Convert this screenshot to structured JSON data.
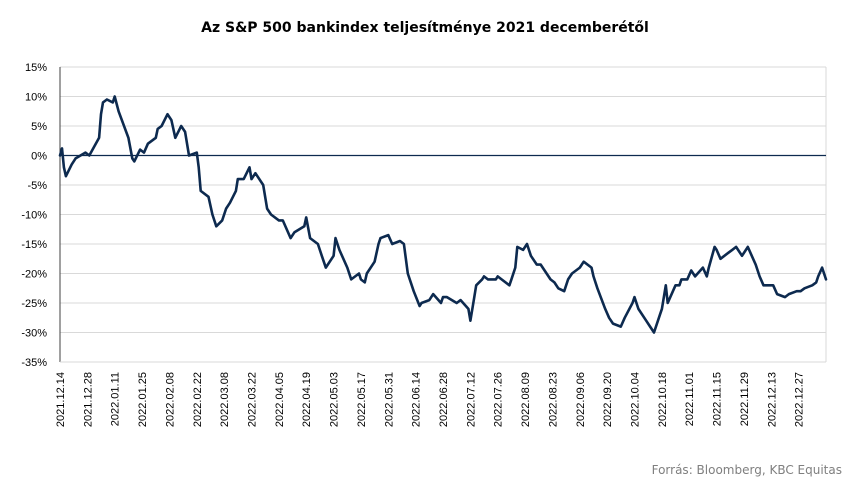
{
  "chart_data": {
    "type": "line",
    "title": "Az S&P 500 bankindex teljesítménye 2021 decemberétől",
    "source": "Forrás: Bloomberg, KBC Equitas",
    "xlabel": "",
    "ylabel": "",
    "ylim": [
      -35,
      15
    ],
    "y_ticks": [
      "15%",
      "10%",
      "5%",
      "0%",
      "-5%",
      "-10%",
      "-15%",
      "-20%",
      "-25%",
      "-30%",
      "-35%"
    ],
    "x_ticks": [
      "2021.12.14",
      "2021.12.28",
      "2022.01.11",
      "2022.01.25",
      "2022.02.08",
      "2022.02.22",
      "2022.03.08",
      "2022.03.22",
      "2022.04.05",
      "2022.04.19",
      "2022.05.03",
      "2022.05.17",
      "2022.05.31",
      "2022.06.14",
      "2022.06.28",
      "2022.07.12",
      "2022.07.26",
      "2022.08.09",
      "2022.08.23",
      "2022.09.06",
      "2022.09.20",
      "2022.10.04",
      "2022.10.18",
      "2022.11.01",
      "2022.11.15",
      "2022.11.29",
      "2022.12.13",
      "2022.12.27"
    ],
    "grid": true,
    "line_color": "#0d2a4f",
    "series": [
      {
        "name": "",
        "points": [
          [
            "2021.12.14",
            0
          ],
          [
            "2021.12.15",
            1.2
          ],
          [
            "2021.12.16",
            -2
          ],
          [
            "2021.12.17",
            -3.5
          ],
          [
            "2021.12.20",
            -1.5
          ],
          [
            "2021.12.22",
            -0.5
          ],
          [
            "2021.12.27",
            0.5
          ],
          [
            "2021.12.29",
            0
          ],
          [
            "2022.01.03",
            3
          ],
          [
            "2022.01.04",
            7
          ],
          [
            "2022.01.05",
            9
          ],
          [
            "2022.01.07",
            9.5
          ],
          [
            "2022.01.10",
            9
          ],
          [
            "2022.01.11",
            10
          ],
          [
            "2022.01.13",
            7.5
          ],
          [
            "2022.01.18",
            3
          ],
          [
            "2022.01.20",
            -0.5
          ],
          [
            "2022.01.21",
            -1
          ],
          [
            "2022.01.24",
            1
          ],
          [
            "2022.01.26",
            0.5
          ],
          [
            "2022.01.28",
            2
          ],
          [
            "2022.02.01",
            3
          ],
          [
            "2022.02.02",
            4.5
          ],
          [
            "2022.02.04",
            5
          ],
          [
            "2022.02.07",
            7
          ],
          [
            "2022.02.09",
            6
          ],
          [
            "2022.02.11",
            3
          ],
          [
            "2022.02.14",
            5
          ],
          [
            "2022.02.16",
            4
          ],
          [
            "2022.02.18",
            0
          ],
          [
            "2022.02.22",
            0.5
          ],
          [
            "2022.02.23",
            -2
          ],
          [
            "2022.02.24",
            -6
          ],
          [
            "2022.02.28",
            -7
          ],
          [
            "2022.03.02",
            -10
          ],
          [
            "2022.03.04",
            -12
          ],
          [
            "2022.03.07",
            -11
          ],
          [
            "2022.03.09",
            -9
          ],
          [
            "2022.03.11",
            -8
          ],
          [
            "2022.03.14",
            -6
          ],
          [
            "2022.03.15",
            -4
          ],
          [
            "2022.03.18",
            -4
          ],
          [
            "2022.03.21",
            -2
          ],
          [
            "2022.03.22",
            -4
          ],
          [
            "2022.03.24",
            -3
          ],
          [
            "2022.03.28",
            -5
          ],
          [
            "2022.03.30",
            -9
          ],
          [
            "2022.04.01",
            -10
          ],
          [
            "2022.04.05",
            -11
          ],
          [
            "2022.04.07",
            -11
          ],
          [
            "2022.04.11",
            -14
          ],
          [
            "2022.04.13",
            -13
          ],
          [
            "2022.04.18",
            -12
          ],
          [
            "2022.04.19",
            -10.5
          ],
          [
            "2022.04.21",
            -14
          ],
          [
            "2022.04.25",
            -15
          ],
          [
            "2022.04.27",
            -17
          ],
          [
            "2022.04.29",
            -19
          ],
          [
            "2022.05.03",
            -17
          ],
          [
            "2022.05.04",
            -14
          ],
          [
            "2022.05.06",
            -16
          ],
          [
            "2022.05.10",
            -19
          ],
          [
            "2022.05.12",
            -21
          ],
          [
            "2022.05.16",
            -20
          ],
          [
            "2022.05.17",
            -21
          ],
          [
            "2022.05.19",
            -21.5
          ],
          [
            "2022.05.20",
            -20
          ],
          [
            "2022.05.24",
            -18
          ],
          [
            "2022.05.26",
            -15
          ],
          [
            "2022.05.27",
            -14
          ],
          [
            "2022.05.31",
            -13.5
          ],
          [
            "2022.06.02",
            -15
          ],
          [
            "2022.06.06",
            -14.5
          ],
          [
            "2022.06.08",
            -15
          ],
          [
            "2022.06.10",
            -20
          ],
          [
            "2022.06.13",
            -23
          ],
          [
            "2022.06.16",
            -25.5
          ],
          [
            "2022.06.17",
            -25
          ],
          [
            "2022.06.21",
            -24.5
          ],
          [
            "2022.06.23",
            -23.5
          ],
          [
            "2022.06.27",
            -25
          ],
          [
            "2022.06.28",
            -24
          ],
          [
            "2022.06.30",
            -24
          ],
          [
            "2022.07.05",
            -25
          ],
          [
            "2022.07.07",
            -24.5
          ],
          [
            "2022.07.11",
            -26
          ],
          [
            "2022.07.12",
            -28
          ],
          [
            "2022.07.14",
            -24
          ],
          [
            "2022.07.15",
            -22
          ],
          [
            "2022.07.18",
            -21
          ],
          [
            "2022.07.19",
            -20.5
          ],
          [
            "2022.07.21",
            -21
          ],
          [
            "2022.07.25",
            -21
          ],
          [
            "2022.07.26",
            -20.5
          ],
          [
            "2022.07.28",
            -21
          ],
          [
            "2022.08.01",
            -22
          ],
          [
            "2022.08.02",
            -21
          ],
          [
            "2022.08.04",
            -19
          ],
          [
            "2022.08.05",
            -15.5
          ],
          [
            "2022.08.08",
            -16
          ],
          [
            "2022.08.10",
            -15
          ],
          [
            "2022.08.12",
            -17
          ],
          [
            "2022.08.15",
            -18.5
          ],
          [
            "2022.08.17",
            -18.5
          ],
          [
            "2022.08.19",
            -19.5
          ],
          [
            "2022.08.22",
            -21
          ],
          [
            "2022.08.24",
            -21.5
          ],
          [
            "2022.08.26",
            -22.5
          ],
          [
            "2022.08.29",
            -23
          ],
          [
            "2022.08.31",
            -21
          ],
          [
            "2022.09.02",
            -20
          ],
          [
            "2022.09.06",
            -19
          ],
          [
            "2022.09.08",
            -18
          ],
          [
            "2022.09.12",
            -19
          ],
          [
            "2022.09.13",
            -20.5
          ],
          [
            "2022.09.15",
            -22.5
          ],
          [
            "2022.09.19",
            -26
          ],
          [
            "2022.09.21",
            -27.5
          ],
          [
            "2022.09.23",
            -28.5
          ],
          [
            "2022.09.27",
            -29
          ],
          [
            "2022.09.29",
            -27.5
          ],
          [
            "2022.10.03",
            -25
          ],
          [
            "2022.10.04",
            -24
          ],
          [
            "2022.10.06",
            -26
          ],
          [
            "2022.10.10",
            -28
          ],
          [
            "2022.10.12",
            -29
          ],
          [
            "2022.10.14",
            -30
          ],
          [
            "2022.10.17",
            -27
          ],
          [
            "2022.10.18",
            -26
          ],
          [
            "2022.10.20",
            -22
          ],
          [
            "2022.10.21",
            -25
          ],
          [
            "2022.10.25",
            -22
          ],
          [
            "2022.10.27",
            -22
          ],
          [
            "2022.10.28",
            -21
          ],
          [
            "2022.10.31",
            -21
          ],
          [
            "2022.11.02",
            -19.5
          ],
          [
            "2022.11.04",
            -20.5
          ],
          [
            "2022.11.08",
            -19
          ],
          [
            "2022.11.10",
            -20.5
          ],
          [
            "2022.11.11",
            -19
          ],
          [
            "2022.11.14",
            -15.5
          ],
          [
            "2022.11.15",
            -16
          ],
          [
            "2022.11.17",
            -17.5
          ],
          [
            "2022.11.21",
            -16.5
          ],
          [
            "2022.11.23",
            -16
          ],
          [
            "2022.11.25",
            -15.5
          ],
          [
            "2022.11.28",
            -17
          ],
          [
            "2022.11.30",
            -16
          ],
          [
            "2022.12.01",
            -15.5
          ],
          [
            "2022.12.05",
            -18.5
          ],
          [
            "2022.12.07",
            -20.5
          ],
          [
            "2022.12.09",
            -22
          ],
          [
            "2022.12.12",
            -22
          ],
          [
            "2022.12.14",
            -22
          ],
          [
            "2022.12.16",
            -23.5
          ],
          [
            "2022.12.20",
            -24
          ],
          [
            "2022.12.22",
            -23.5
          ],
          [
            "2022.12.26",
            -23
          ],
          [
            "2022.12.28",
            -23
          ],
          [
            "2022.12.30",
            -22.5
          ],
          [
            "2023.01.03",
            -22
          ],
          [
            "2023.01.05",
            -21.5
          ],
          [
            "2023.01.06",
            -20.5
          ],
          [
            "2023.01.08",
            -19
          ],
          [
            "2023.01.10",
            -21
          ]
        ]
      }
    ]
  }
}
